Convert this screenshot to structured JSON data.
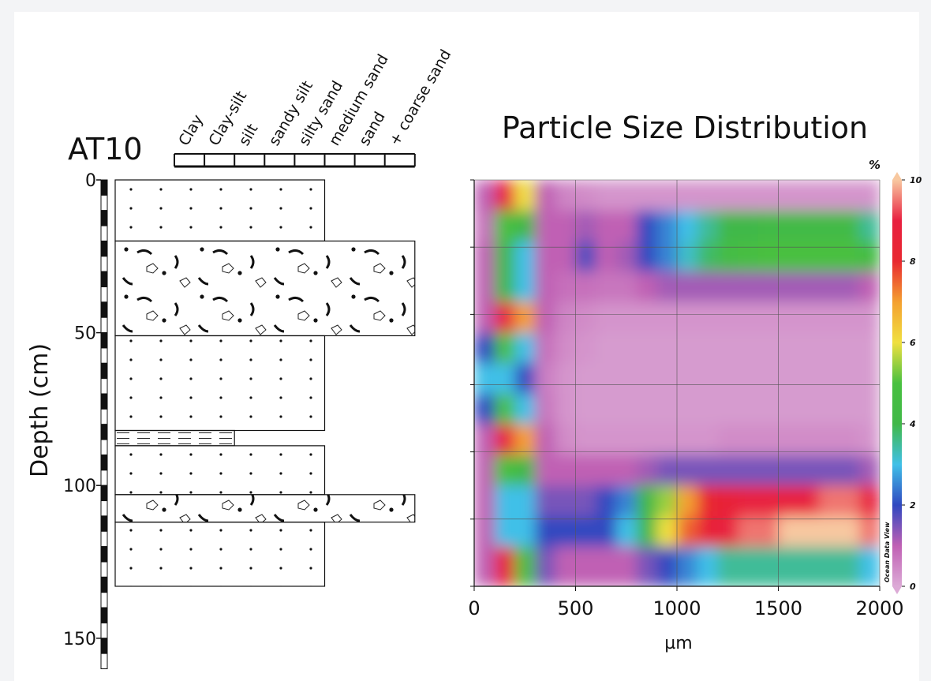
{
  "chart_data": [
    {
      "type": "lithology",
      "title": "AT10",
      "ylabel": "Depth (cm)",
      "categories": [
        "Clay",
        "Clay-silt",
        "silt",
        "sandy silt",
        "silty sand",
        "medium sand",
        "sand",
        "+ coarse sand"
      ],
      "ylim": [
        0,
        160
      ],
      "yticks": [
        0,
        50,
        100,
        150
      ],
      "layers": [
        {
          "top": 0,
          "bottom": 20,
          "class": 4
        },
        {
          "top": 20,
          "bottom": 51,
          "class": 7
        },
        {
          "top": 51,
          "bottom": 82,
          "class": 4
        },
        {
          "top": 82,
          "bottom": 87,
          "class": 1
        },
        {
          "top": 87,
          "bottom": 103,
          "class": 4
        },
        {
          "top": 103,
          "bottom": 112,
          "class": 7
        },
        {
          "top": 112,
          "bottom": 133,
          "class": 4
        }
      ]
    },
    {
      "type": "contour",
      "title": "Particle Size Distribution",
      "xlabel": "µm",
      "colorbar_label": "%",
      "watermark": "Ocean Data View",
      "xlim": [
        0,
        2000
      ],
      "xticks": [
        0,
        500,
        1000,
        1500,
        2000
      ],
      "ylim": [
        0,
        133
      ],
      "yticks": [
        0,
        22,
        44,
        67,
        89,
        111,
        133
      ],
      "grid": true,
      "x_edges": [
        0,
        100,
        200,
        300,
        400,
        500,
        600,
        700,
        800,
        900,
        1000,
        1100,
        1200,
        1300,
        1400,
        1500,
        1600,
        1700,
        1800,
        1900,
        2000
      ],
      "y_edges": [
        0,
        10,
        20,
        30,
        40,
        50,
        60,
        70,
        80,
        90,
        100,
        110,
        120,
        133
      ],
      "z": [
        [
          1,
          9,
          6,
          1,
          0.5,
          0.4,
          0.3,
          0.3,
          0.3,
          0.3,
          0.3,
          0.3,
          0.3,
          0.3,
          0.3,
          0.3,
          0.3,
          0.3,
          0.3,
          0.3
        ],
        [
          0.8,
          5,
          4,
          1,
          1,
          1.2,
          1,
          1,
          2,
          2.5,
          3,
          3.5,
          4,
          4,
          4.2,
          4.2,
          4.2,
          4.2,
          4.2,
          3.5
        ],
        [
          1,
          4,
          3,
          1,
          1,
          1.8,
          1,
          1.2,
          2,
          2.5,
          3.2,
          3.8,
          4.5,
          4.8,
          5,
          5,
          5,
          5,
          5,
          4.5
        ],
        [
          1,
          4,
          3,
          1,
          0.8,
          0.8,
          0.7,
          0.7,
          1,
          1.2,
          1.2,
          1.2,
          1.2,
          1.2,
          1.2,
          1.2,
          1.2,
          1.2,
          1.2,
          1
        ],
        [
          1,
          9,
          7,
          1,
          0.5,
          0.4,
          0.3,
          0.3,
          0.3,
          0.3,
          0.3,
          0.3,
          0.3,
          0.3,
          0.3,
          0.3,
          0.3,
          0.3,
          0.3,
          0.3
        ],
        [
          2,
          5,
          3,
          0.8,
          0.4,
          0.3,
          0.2,
          0.2,
          0.2,
          0.2,
          0.2,
          0.2,
          0.2,
          0.2,
          0.2,
          0.2,
          0.2,
          0.2,
          0.2,
          0.2
        ],
        [
          3,
          3,
          2,
          0.6,
          0.3,
          0.2,
          0.2,
          0.2,
          0.2,
          0.2,
          0.2,
          0.2,
          0.2,
          0.2,
          0.2,
          0.2,
          0.2,
          0.2,
          0.2,
          0.2
        ],
        [
          2,
          5,
          3,
          0.7,
          0.3,
          0.2,
          0.2,
          0.2,
          0.2,
          0.2,
          0.2,
          0.2,
          0.2,
          0.2,
          0.2,
          0.2,
          0.2,
          0.2,
          0.2,
          0.2
        ],
        [
          1,
          9,
          7,
          1,
          0.4,
          0.3,
          0.3,
          0.3,
          0.3,
          0.3,
          0.3,
          0.3,
          0.4,
          0.4,
          0.4,
          0.4,
          0.4,
          0.4,
          0.4,
          0.3
        ],
        [
          1,
          5,
          4,
          1,
          1,
          1,
          1,
          1,
          1.2,
          1.5,
          1.5,
          1.5,
          1.5,
          1.5,
          1.5,
          1.5,
          1.5,
          1.5,
          1.5,
          1.2
        ],
        [
          1,
          3,
          3,
          1.5,
          1.5,
          1.5,
          2,
          2.5,
          4,
          5.5,
          7,
          8,
          8.5,
          9,
          9,
          9,
          9,
          9.5,
          9.5,
          9
        ],
        [
          1,
          3,
          3,
          2,
          2,
          2,
          2,
          3,
          4,
          6,
          7.5,
          8.5,
          9,
          9.5,
          9.5,
          10,
          10,
          10,
          10,
          9.5
        ],
        [
          1,
          9,
          5,
          1.5,
          1,
          1,
          1,
          1,
          1.5,
          2,
          2.5,
          3,
          3.5,
          3.5,
          3.5,
          3.5,
          3.5,
          3.5,
          3.5,
          3
        ]
      ],
      "colorbar": {
        "ticks": [
          0,
          2,
          4,
          6,
          8,
          10
        ],
        "stops": [
          0,
          1,
          2,
          3,
          4,
          5,
          6,
          7,
          8,
          9,
          10
        ],
        "colors": [
          "#dcaad6",
          "#c060b4",
          "#3048c0",
          "#40c0e8",
          "#40b848",
          "#48c040",
          "#f0e040",
          "#f4a030",
          "#e82830",
          "#e82040",
          "#f8c8a0"
        ]
      }
    }
  ]
}
